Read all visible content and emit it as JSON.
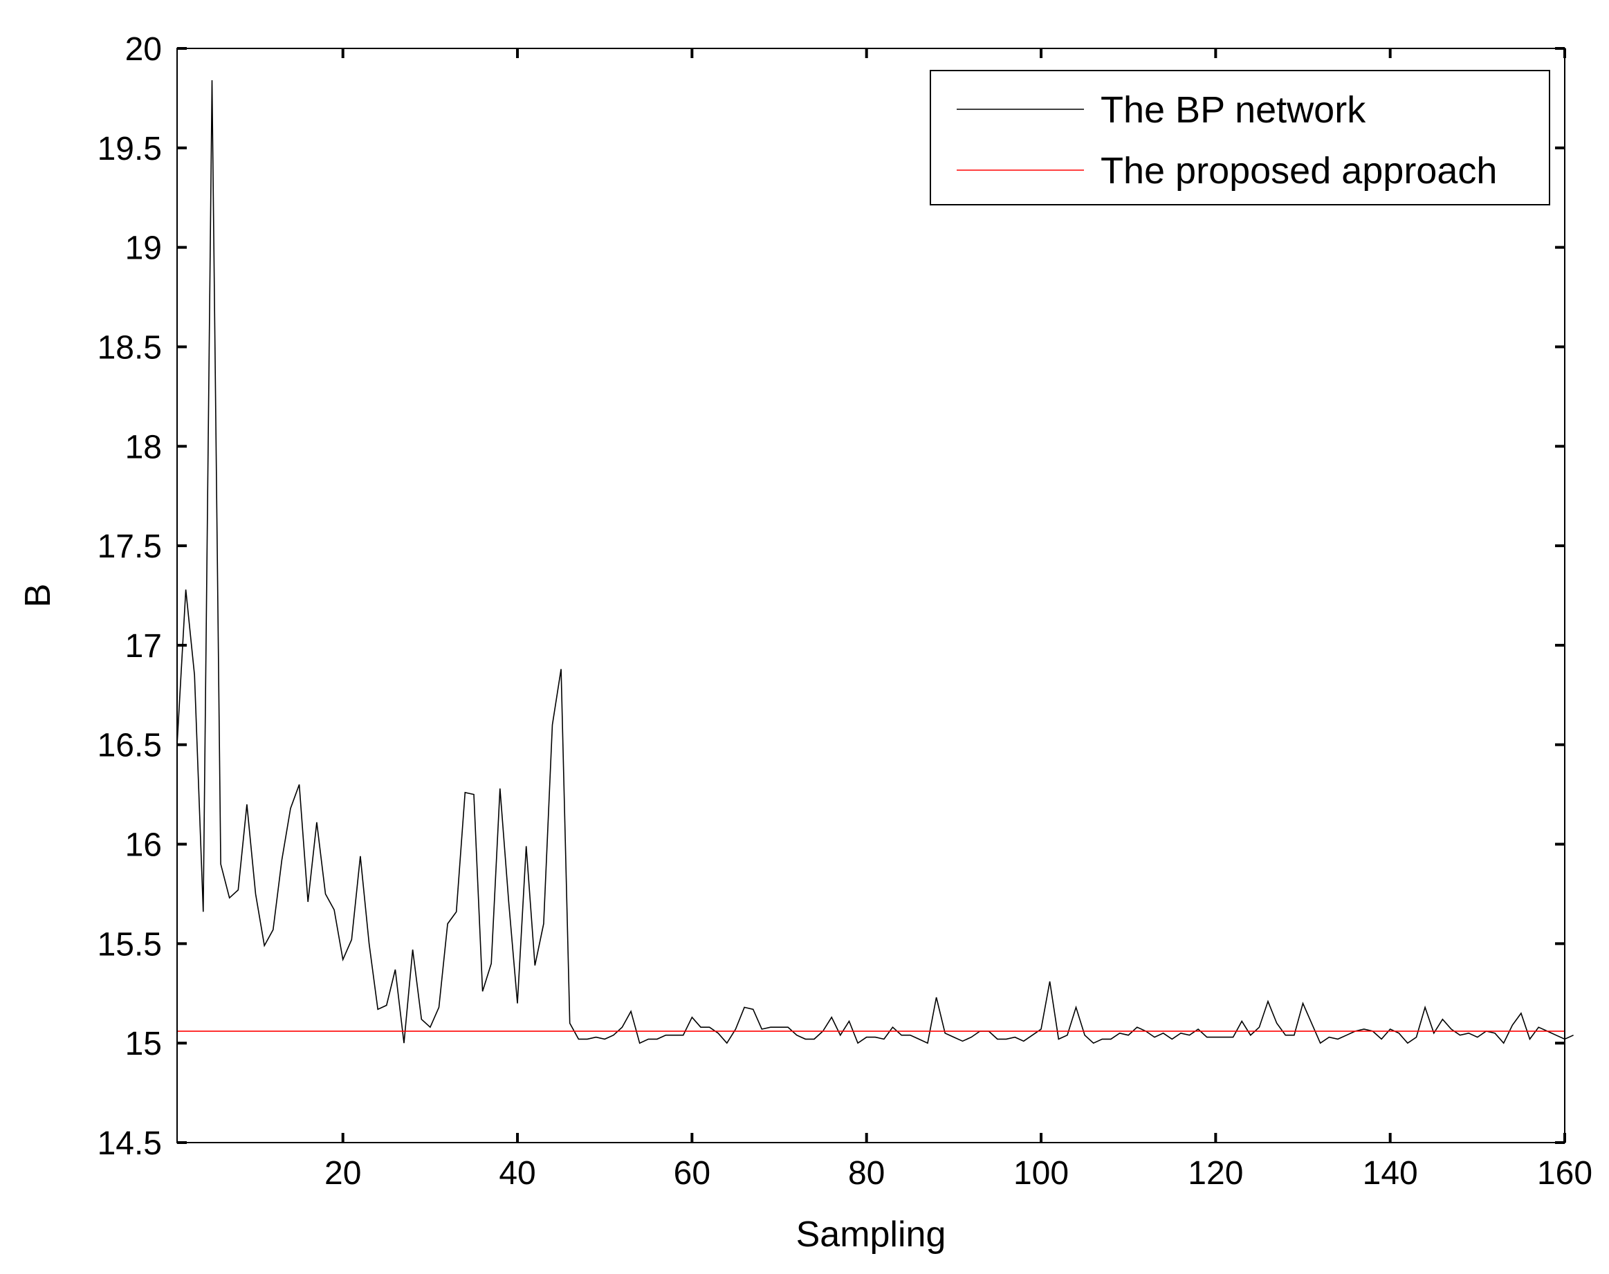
{
  "chart_data": {
    "type": "line",
    "xlabel": "Sampling",
    "ylabel": "B",
    "xlim": [
      1,
      160
    ],
    "ylim": [
      14.5,
      20
    ],
    "xticks": [
      20,
      40,
      60,
      80,
      100,
      120,
      140,
      160
    ],
    "yticks": [
      14.5,
      15,
      15.5,
      16,
      16.5,
      17,
      17.5,
      18,
      18.5,
      19,
      19.5,
      20
    ],
    "grid": false,
    "legend": {
      "position": "top-right"
    },
    "series": [
      {
        "name": "The BP network",
        "color": "#000000",
        "x_start": 1,
        "x_step": 1,
        "y": [
          16.5,
          17.28,
          16.85,
          15.66,
          19.84,
          15.9,
          15.73,
          15.77,
          16.2,
          15.75,
          15.49,
          15.57,
          15.92,
          16.18,
          16.3,
          15.71,
          16.11,
          15.75,
          15.67,
          15.42,
          15.52,
          15.94,
          15.5,
          15.17,
          15.19,
          15.37,
          15.0,
          15.47,
          15.12,
          15.08,
          15.18,
          15.6,
          15.66,
          16.26,
          16.25,
          15.26,
          15.4,
          16.28,
          15.71,
          15.2,
          15.99,
          15.39,
          15.6,
          16.6,
          16.88,
          15.1,
          15.02,
          15.02,
          15.03,
          15.02,
          15.04,
          15.08,
          15.16,
          15.0,
          15.02,
          15.02,
          15.04,
          15.04,
          15.04,
          15.13,
          15.08,
          15.08,
          15.05,
          15.0,
          15.07,
          15.18,
          15.17,
          15.07,
          15.08,
          15.08,
          15.08,
          15.04,
          15.02,
          15.02,
          15.06,
          15.13,
          15.04,
          15.11,
          15.0,
          15.03,
          15.03,
          15.02,
          15.08,
          15.04,
          15.04,
          15.02,
          15.0,
          15.23,
          15.05,
          15.03,
          15.01,
          15.03,
          15.06,
          15.06,
          15.02,
          15.02,
          15.03,
          15.01,
          15.04,
          15.07,
          15.31,
          15.02,
          15.04,
          15.18,
          15.04,
          15.0,
          15.02,
          15.02,
          15.05,
          15.04,
          15.08,
          15.06,
          15.03,
          15.05,
          15.02,
          15.05,
          15.04,
          15.07,
          15.03,
          15.03,
          15.03,
          15.03,
          15.11,
          15.04,
          15.08,
          15.21,
          15.1,
          15.04,
          15.04,
          15.2,
          15.1,
          15.0,
          15.03,
          15.02,
          15.04,
          15.06,
          15.07,
          15.06,
          15.02,
          15.07,
          15.05,
          15.0,
          15.03,
          15.18,
          15.05,
          15.12,
          15.07,
          15.04,
          15.05,
          15.03,
          15.06,
          15.05,
          15.0,
          15.09,
          15.15,
          15.02,
          15.08,
          15.06,
          15.04,
          15.02,
          15.04
        ]
      },
      {
        "name": "The proposed approach",
        "color": "#ff0000",
        "x": [
          1,
          160
        ],
        "y": [
          15.06,
          15.06
        ]
      }
    ]
  }
}
